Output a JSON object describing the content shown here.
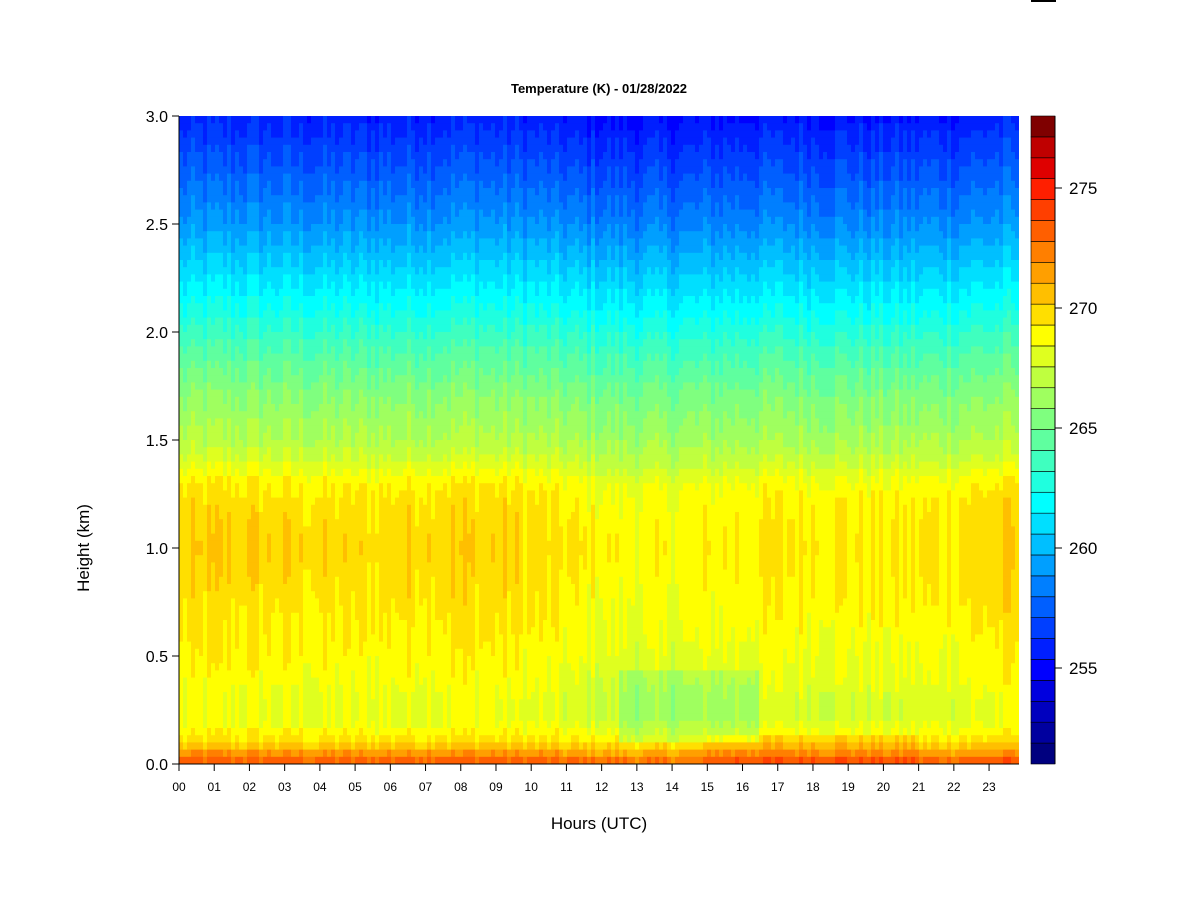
{
  "chart_data": {
    "type": "heatmap",
    "title": "Temperature (K) - 01/28/2022",
    "xlabel": "Hours (UTC)",
    "ylabel": "Height (km)",
    "x_ticks": [
      "00",
      "01",
      "02",
      "03",
      "04",
      "05",
      "06",
      "07",
      "08",
      "09",
      "10",
      "11",
      "12",
      "13",
      "14",
      "15",
      "16",
      "17",
      "18",
      "19",
      "20",
      "21",
      "22",
      "23"
    ],
    "xlim": [
      0,
      23.85
    ],
    "y_ticks": [
      "0.0",
      "0.5",
      "1.0",
      "1.5",
      "2.0",
      "2.5",
      "3.0"
    ],
    "ylim": [
      0,
      3.0
    ],
    "colorbar": {
      "ticks": [
        "255",
        "260",
        "265",
        "270",
        "275"
      ],
      "range": [
        251,
        278
      ],
      "levels": 27,
      "colors": [
        "#00007f",
        "#00009f",
        "#0000bf",
        "#0000df",
        "#0000ff",
        "#001fff",
        "#003fff",
        "#005fff",
        "#007fff",
        "#009fff",
        "#00bfff",
        "#00dfff",
        "#00ffff",
        "#1fffdf",
        "#3fffbf",
        "#5fff9f",
        "#7fff7f",
        "#9fff5f",
        "#bfff3f",
        "#dfff1f",
        "#ffff00",
        "#ffdf00",
        "#ffbf00",
        "#ff9f00",
        "#ff7f00",
        "#ff5f00",
        "#ff3f00",
        "#ff1f00",
        "#df0000",
        "#bf0000",
        "#7f0000"
      ]
    },
    "profile": {
      "heights_km": [
        0.0,
        0.05,
        0.1,
        0.2,
        0.3,
        0.4,
        0.6,
        0.8,
        1.0,
        1.2,
        1.3,
        1.4,
        1.5,
        1.7,
        1.9,
        2.1,
        2.3,
        2.5,
        2.7,
        2.9,
        3.0
      ],
      "temperature_k": [
        273.5,
        271.5,
        269.5,
        268.0,
        268.0,
        268.4,
        268.9,
        269.3,
        269.6,
        269.3,
        268.8,
        267.5,
        266.6,
        265.5,
        264.0,
        262.2,
        260.5,
        258.8,
        257.5,
        256.2,
        255.5
      ]
    }
  }
}
